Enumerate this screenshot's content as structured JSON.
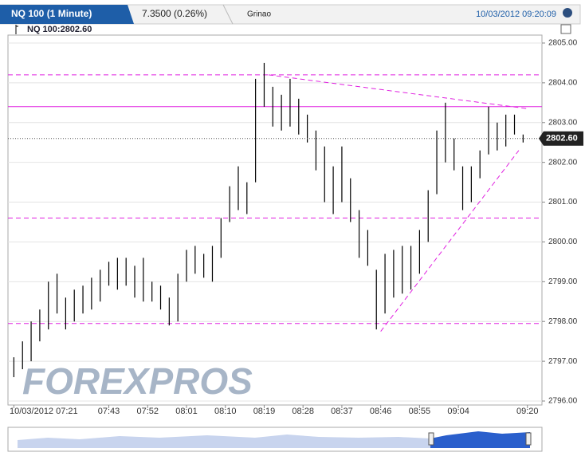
{
  "header": {
    "instrument": "NQ 100 (1 Minute)",
    "change": "7.3500 (0.26%)",
    "link": "Grinao",
    "timestamp": "10/03/2012 09:20:09",
    "legend": "NQ 100:2802.60"
  },
  "watermark": "FOREXPROS",
  "chart_data": {
    "type": "ohlc",
    "color": "#000000",
    "line_color": "#e020e0",
    "x": [
      "07:21",
      "07:23",
      "07:25",
      "07:27",
      "07:29",
      "07:31",
      "07:33",
      "07:35",
      "07:37",
      "07:39",
      "07:41",
      "07:43",
      "07:45",
      "07:47",
      "07:49",
      "07:51",
      "07:53",
      "07:55",
      "07:57",
      "07:59",
      "08:01",
      "08:03",
      "08:05",
      "08:07",
      "08:09",
      "08:11",
      "08:13",
      "08:15",
      "08:17",
      "08:19",
      "08:21",
      "08:23",
      "08:25",
      "08:27",
      "08:29",
      "08:31",
      "08:33",
      "08:35",
      "08:37",
      "08:39",
      "08:41",
      "08:43",
      "08:45",
      "08:47",
      "08:49",
      "08:51",
      "08:53",
      "08:55",
      "08:57",
      "08:59",
      "09:01",
      "09:03",
      "09:05",
      "09:07",
      "09:09",
      "09:11",
      "09:13",
      "09:15",
      "09:17",
      "09:19"
    ],
    "low": [
      2796.6,
      2796.8,
      2797,
      2797.5,
      2797.8,
      2798.2,
      2797.8,
      2798,
      2798.2,
      2798.3,
      2798.5,
      2798.9,
      2798.8,
      2798.9,
      2798.6,
      2798.5,
      2798.5,
      2798.3,
      2797.9,
      2798,
      2799,
      2799.2,
      2799.1,
      2799,
      2799.6,
      2800.5,
      2800.8,
      2800.7,
      2801.5,
      2803.4,
      2802.9,
      2802.8,
      2802.9,
      2802.7,
      2802.5,
      2801.8,
      2801,
      2800.7,
      2801,
      2800.5,
      2799.6,
      2799.4,
      2797.8,
      2798.2,
      2798.6,
      2798.7,
      2798.8,
      2799.2,
      2800,
      2801.2,
      2802,
      2801.8,
      2800.8,
      2801,
      2801.6,
      2802.2,
      2802.3,
      2802.4,
      2802.7,
      2802.5
    ],
    "high": [
      2797.1,
      2797.5,
      2798,
      2798.3,
      2799,
      2799.2,
      2798.6,
      2798.8,
      2798.9,
      2799.1,
      2799.3,
      2799.5,
      2799.6,
      2799.6,
      2799.4,
      2799.6,
      2799,
      2798.9,
      2798.6,
      2799.2,
      2799.8,
      2799.9,
      2799.7,
      2799.9,
      2800.6,
      2801.4,
      2801.9,
      2801.5,
      2804.1,
      2804.5,
      2803.9,
      2803.7,
      2804.1,
      2803.6,
      2803.2,
      2802.8,
      2802.4,
      2801.9,
      2802.4,
      2801.6,
      2800.8,
      2800.3,
      2799.3,
      2799.7,
      2799.8,
      2799.9,
      2799.9,
      2800.3,
      2801.3,
      2802.8,
      2803.5,
      2802.6,
      2801.9,
      2801.9,
      2802.3,
      2803.4,
      2803,
      2803.2,
      2803.2,
      2802.7
    ],
    "xlim": [
      "07:20",
      "09:23"
    ],
    "xticks": [
      {
        "value": "07:21",
        "label": "10/03/2012 07:21"
      },
      "07:43",
      "07:52",
      "08:01",
      "08:10",
      "08:19",
      "08:28",
      "08:37",
      "08:46",
      "08:55",
      "09:04",
      "09:20"
    ],
    "ylim": [
      2795.9,
      2805.2
    ],
    "yticks": [
      {
        "value": 2796,
        "label": "2796.00"
      },
      {
        "value": 2797,
        "label": "2797.00"
      },
      {
        "value": 2798,
        "label": "2798.00"
      },
      {
        "value": 2799,
        "label": "2799.00"
      },
      {
        "value": 2800,
        "label": "2800.00"
      },
      {
        "value": 2801,
        "label": "2801.00"
      },
      {
        "value": 2802,
        "label": "2802.00"
      },
      {
        "value": 2803,
        "label": "2803.00"
      },
      {
        "value": 2804,
        "label": "2804.00"
      },
      {
        "value": 2805,
        "label": "2805.00"
      }
    ],
    "grid": true,
    "current": {
      "value": 2802.6,
      "label": "2802.60"
    },
    "hlines": [
      {
        "value": 2804.2,
        "dashed": true
      },
      {
        "value": 2803.4,
        "dashed": false
      },
      {
        "value": 2800.6,
        "dashed": true
      },
      {
        "value": 2797.95,
        "dashed": true
      }
    ],
    "trendlines": [
      {
        "x": [
          "08:20",
          "09:20"
        ],
        "y": [
          2804.2,
          2803.35
        ]
      },
      {
        "x": [
          "08:46",
          "09:18"
        ],
        "y": [
          2797.75,
          2802.3
        ]
      }
    ]
  }
}
